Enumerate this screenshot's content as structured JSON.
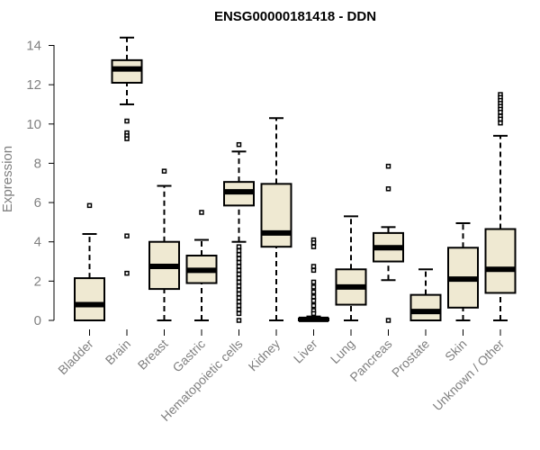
{
  "chart_data": {
    "type": "boxplot",
    "title": "ENSG00000181418 - DDN",
    "xlabel": "",
    "ylabel": "Expression",
    "ylim": [
      0,
      14.5
    ],
    "yticks": [
      0,
      2,
      4,
      6,
      8,
      10,
      12,
      14
    ],
    "grid": false,
    "box_fill": "#efe9d2",
    "box_stroke": "#000000",
    "categories": [
      "Bladder",
      "Brain",
      "Breast",
      "Gastric",
      "Hematopoietic cells",
      "Kidney",
      "Liver",
      "Lung",
      "Pancreas",
      "Prostate",
      "Skin",
      "Unknown / Other"
    ],
    "boxes": [
      {
        "whisker_low": 0,
        "q1": 0,
        "median": 0.8,
        "q3": 2.15,
        "whisker_high": 4.4,
        "outliers": [
          5.85
        ]
      },
      {
        "whisker_low": 11.0,
        "q1": 12.1,
        "median": 12.8,
        "q3": 13.25,
        "whisker_high": 14.4,
        "outliers": [
          10.15,
          9.55,
          9.4,
          9.25,
          4.3,
          2.4
        ]
      },
      {
        "whisker_low": 0,
        "q1": 1.6,
        "median": 2.75,
        "q3": 4.0,
        "whisker_high": 6.85,
        "outliers": [
          7.6
        ]
      },
      {
        "whisker_low": 0,
        "q1": 1.9,
        "median": 2.55,
        "q3": 3.3,
        "whisker_high": 4.1,
        "outliers": [
          5.5
        ]
      },
      {
        "whisker_low": 4.0,
        "q1": 5.85,
        "median": 6.55,
        "q3": 7.05,
        "whisker_high": 8.6,
        "outliers": [
          8.95,
          3.75,
          3.55,
          3.35,
          3.15,
          2.95,
          2.75,
          2.55,
          2.35,
          2.15,
          1.95,
          1.75,
          1.55,
          1.35,
          1.15,
          0.95,
          0.75,
          0.55,
          0.35,
          0.0
        ]
      },
      {
        "whisker_low": 0,
        "q1": 3.75,
        "median": 4.45,
        "q3": 6.95,
        "whisker_high": 10.3,
        "outliers": []
      },
      {
        "whisker_low": 0,
        "q1": 0,
        "median": 0.05,
        "q3": 0.1,
        "whisker_high": 0.2,
        "outliers": [
          4.1,
          3.95,
          3.75,
          2.75,
          2.55,
          1.95,
          1.7,
          1.45,
          1.2,
          1.0,
          0.75,
          0.5,
          0.35
        ]
      },
      {
        "whisker_low": 0,
        "q1": 0.8,
        "median": 1.7,
        "q3": 2.6,
        "whisker_high": 5.3,
        "outliers": []
      },
      {
        "whisker_low": 2.05,
        "q1": 3.0,
        "median": 3.7,
        "q3": 4.45,
        "whisker_high": 4.75,
        "outliers": [
          7.85,
          6.7,
          0.0
        ]
      },
      {
        "whisker_low": 0,
        "q1": 0,
        "median": 0.45,
        "q3": 1.3,
        "whisker_high": 2.6,
        "outliers": []
      },
      {
        "whisker_low": 0,
        "q1": 0.65,
        "median": 2.1,
        "q3": 3.7,
        "whisker_high": 4.95,
        "outliers": []
      },
      {
        "whisker_low": 0,
        "q1": 1.4,
        "median": 2.6,
        "q3": 4.65,
        "whisker_high": 9.4,
        "outliers": [
          11.5,
          11.35,
          11.2,
          11.05,
          10.9,
          10.75,
          10.6,
          10.4,
          10.25,
          10.05
        ]
      }
    ]
  }
}
